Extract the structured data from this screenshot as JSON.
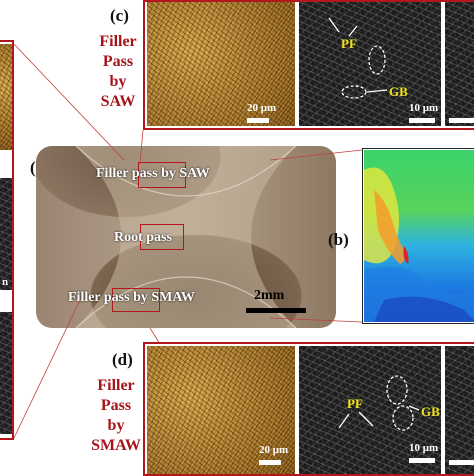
{
  "labels": {
    "a": "(a)",
    "b": "(b)",
    "c": "(c)",
    "d": "(d)"
  },
  "panel_c": {
    "title": "Filler Pass by SAW",
    "title_lines": [
      "Filler",
      "Pass",
      "by",
      "SAW"
    ],
    "optical_scale": "20 μm",
    "sem_scale": "10 μm",
    "annotations": [
      "PF",
      "GB"
    ]
  },
  "panel_d": {
    "title": "Filler Pass by SMAW",
    "title_lines": [
      "Filler",
      "Pass",
      "by",
      "SMAW"
    ],
    "optical_scale": "20 μm",
    "sem_scale": "10 μm",
    "annotations": [
      "PF",
      "GB"
    ]
  },
  "panel_a": {
    "regions": [
      "Filler pass by SAW",
      "Root pass",
      "Filler pass by SMAW"
    ],
    "scale": "2mm"
  },
  "colors": {
    "accent_red": "#b1171d",
    "annotation_yellow": "#f3e41a"
  },
  "left_strip": {
    "visible_fragments": [
      "n"
    ]
  }
}
